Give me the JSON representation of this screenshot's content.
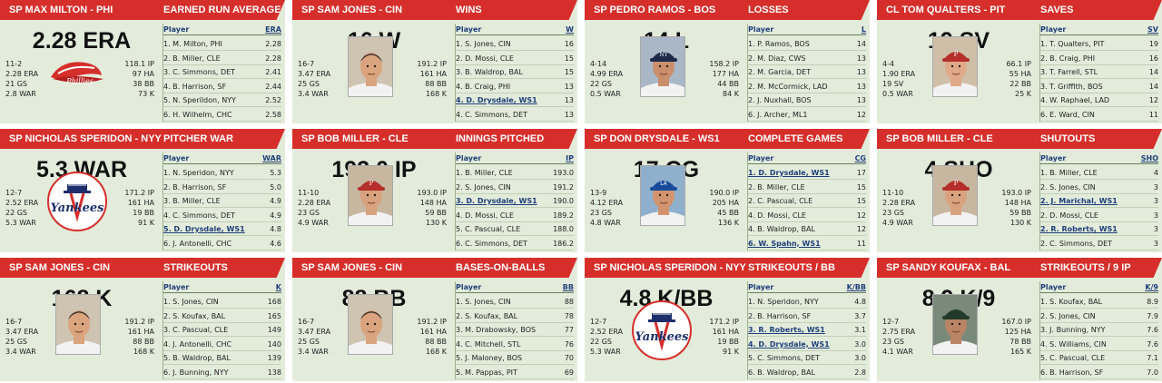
{
  "colors": {
    "header_bg": "#d62f2b",
    "card_bg": "#e3ecdb",
    "leader_link": "#1f3f7a"
  },
  "cards": [
    {
      "player_line": "SP MAX MILTON - PHI",
      "stat_title": "EARNED RUN AVERAGE",
      "big_value": "2.28 ERA",
      "mini_left": [
        "11-2",
        "2.28 ERA",
        "21 GS",
        "2.8 WAR"
      ],
      "mini_right": [
        "118.1 IP",
        "97 HA",
        "38 BB",
        "73 K"
      ],
      "image": "logo-phillies",
      "leader_header": "ERA",
      "leaders": [
        {
          "name": "1. M. Milton, PHI",
          "value": "2.28"
        },
        {
          "name": "2. B. Miller, CLE",
          "value": "2.28"
        },
        {
          "name": "3. C. Simmons, DET",
          "value": "2.41"
        },
        {
          "name": "4. B. Harrison, SF",
          "value": "2.44"
        },
        {
          "name": "5. N. Sperildon, NYY",
          "value": "2.52"
        },
        {
          "name": "6. H. Wilhelm, CHC",
          "value": "2.58"
        }
      ]
    },
    {
      "player_line": "SP SAM JONES - CIN",
      "stat_title": "WINS",
      "big_value": "16 W",
      "mini_left": [
        "16-7",
        "3.47 ERA",
        "25 GS",
        "3.4 WAR"
      ],
      "mini_right": [
        "191.2 IP",
        "161 HA",
        "88 BB",
        "168 K"
      ],
      "image": "photo-jones",
      "leader_header": "W",
      "leaders": [
        {
          "name": "1. S. Jones, CIN",
          "value": "16"
        },
        {
          "name": "2. D. Mossi, CLE",
          "value": "15"
        },
        {
          "name": "3. B. Waldrop, BAL",
          "value": "15"
        },
        {
          "name": "4. B. Craig, PHI",
          "value": "13"
        },
        {
          "name": "4. D. Drysdale, WS1",
          "value": "13",
          "hl": true
        },
        {
          "name": "4. C. Simmons, DET",
          "value": "13"
        }
      ]
    },
    {
      "player_line": "SP PEDRO RAMOS - BOS",
      "stat_title": "LOSSES",
      "big_value": "14 L",
      "mini_left": [
        "4-14",
        "4.99 ERA",
        "22 GS",
        "0.5 WAR"
      ],
      "mini_right": [
        "158.2 IP",
        "177 HA",
        "44 BB",
        "84 K"
      ],
      "image": "photo-ramos",
      "leader_header": "L",
      "leaders": [
        {
          "name": "1. P. Ramos, BOS",
          "value": "14"
        },
        {
          "name": "2. M. Diaz, CWS",
          "value": "13"
        },
        {
          "name": "2. M. Garcia, DET",
          "value": "13"
        },
        {
          "name": "2. M. McCormick, LAD",
          "value": "13"
        },
        {
          "name": "2. J. Nuxhall, BOS",
          "value": "13"
        },
        {
          "name": "6. J. Archer, ML1",
          "value": "12"
        }
      ]
    },
    {
      "player_line": "CL TOM QUALTERS - PIT",
      "stat_title": "SAVES",
      "big_value": "19 SV",
      "mini_left": [
        "4-4",
        "1.90 ERA",
        "19 SV",
        "0.5 WAR"
      ],
      "mini_right": [
        "66.1 IP",
        "55 HA",
        "22 BB",
        "25 K"
      ],
      "image": "photo-qualters",
      "leader_header": "SV",
      "leaders": [
        {
          "name": "1. T. Qualters, PIT",
          "value": "19"
        },
        {
          "name": "2. B. Craig, PHI",
          "value": "16"
        },
        {
          "name": "3. T. Farrell, STL",
          "value": "14"
        },
        {
          "name": "3. T. Griffith, BOS",
          "value": "14"
        },
        {
          "name": "4. W. Raphael, LAD",
          "value": "12"
        },
        {
          "name": "6. E. Ward, CIN",
          "value": "11"
        }
      ]
    },
    {
      "player_line": "SP NICHOLAS SPERIDON - NYY",
      "stat_title": "PITCHER WAR",
      "big_value": "5.3 WAR",
      "mini_left": [
        "12-7",
        "2.52 ERA",
        "22 GS",
        "5.3 WAR"
      ],
      "mini_right": [
        "171.2 IP",
        "161 HA",
        "19 BB",
        "91 K"
      ],
      "image": "logo-yankees",
      "leader_header": "WAR",
      "leaders": [
        {
          "name": "1. N. Speridon, NYY",
          "value": "5.3"
        },
        {
          "name": "2. B. Harrison, SF",
          "value": "5.0"
        },
        {
          "name": "3. B. Miller, CLE",
          "value": "4.9"
        },
        {
          "name": "4. C. Simmons, DET",
          "value": "4.9"
        },
        {
          "name": "5. D. Drysdale, WS1",
          "value": "4.8",
          "hl": true
        },
        {
          "name": "6. J. Antonelli, CHC",
          "value": "4.6"
        }
      ]
    },
    {
      "player_line": "SP BOB MILLER - CLE",
      "stat_title": "INNINGS PITCHED",
      "big_value": "193.0 IP",
      "mini_left": [
        "11-10",
        "2.28 ERA",
        "23 GS",
        "4.9 WAR"
      ],
      "mini_right": [
        "193.0 IP",
        "148 HA",
        "59 BB",
        "130 K"
      ],
      "image": "photo-miller",
      "leader_header": "IP",
      "leaders": [
        {
          "name": "1. B. Miller, CLE",
          "value": "193.0"
        },
        {
          "name": "2. S. Jones, CIN",
          "value": "191.2"
        },
        {
          "name": "3. D. Drysdale, WS1",
          "value": "190.0",
          "hl": true
        },
        {
          "name": "4. D. Mossi, CLE",
          "value": "189.2"
        },
        {
          "name": "5. C. Pascual, CLE",
          "value": "188.0"
        },
        {
          "name": "6. C. Simmons, DET",
          "value": "186.2"
        }
      ]
    },
    {
      "player_line": "SP DON DRYSDALE - WS1",
      "stat_title": "COMPLETE GAMES",
      "big_value": "17 CG",
      "mini_left": [
        "13-9",
        "4.12 ERA",
        "23 GS",
        "4.8 WAR"
      ],
      "mini_right": [
        "190.0 IP",
        "205 HA",
        "45 BB",
        "136 K"
      ],
      "image": "photo-drysdale",
      "leader_header": "CG",
      "leaders": [
        {
          "name": "1. D. Drysdale, WS1",
          "value": "17",
          "hl": true
        },
        {
          "name": "2. B. Miller, CLE",
          "value": "15"
        },
        {
          "name": "2. C. Pascual, CLE",
          "value": "15"
        },
        {
          "name": "4. D. Mossi, CLE",
          "value": "12"
        },
        {
          "name": "4. B. Waldrop, BAL",
          "value": "12"
        },
        {
          "name": "6. W. Spahn, WS1",
          "value": "11",
          "hl": true
        }
      ]
    },
    {
      "player_line": "SP BOB MILLER - CLE",
      "stat_title": "SHUTOUTS",
      "big_value": "4 SHO",
      "mini_left": [
        "11-10",
        "2.28 ERA",
        "23 GS",
        "4.9 WAR"
      ],
      "mini_right": [
        "193.0 IP",
        "148 HA",
        "59 BB",
        "130 K"
      ],
      "image": "photo-miller",
      "leader_header": "SHO",
      "leaders": [
        {
          "name": "1. B. Miller, CLE",
          "value": "4"
        },
        {
          "name": "2. S. Jones, CIN",
          "value": "3"
        },
        {
          "name": "2. J. Marichal, WS1",
          "value": "3",
          "hl": true
        },
        {
          "name": "2. D. Mossi, CLE",
          "value": "3"
        },
        {
          "name": "2. R. Roberts, WS1",
          "value": "3",
          "hl": true
        },
        {
          "name": "2. C. Simmons, DET",
          "value": "3"
        }
      ]
    },
    {
      "player_line": "SP SAM JONES - CIN",
      "stat_title": "STRIKEOUTS",
      "big_value": "168 K",
      "mini_left": [
        "16-7",
        "3.47 ERA",
        "25 GS",
        "3.4 WAR"
      ],
      "mini_right": [
        "191.2 IP",
        "161 HA",
        "88 BB",
        "168 K"
      ],
      "image": "photo-jones",
      "leader_header": "K",
      "leaders": [
        {
          "name": "1. S. Jones, CIN",
          "value": "168"
        },
        {
          "name": "2. S. Koufax, BAL",
          "value": "165"
        },
        {
          "name": "3. C. Pascual, CLE",
          "value": "149"
        },
        {
          "name": "4. J. Antonelli, CHC",
          "value": "140"
        },
        {
          "name": "5. B. Waldrop, BAL",
          "value": "139"
        },
        {
          "name": "6. J. Bunning, NYY",
          "value": "138"
        }
      ]
    },
    {
      "player_line": "SP SAM JONES - CIN",
      "stat_title": "BASES-ON-BALLS",
      "big_value": "88 BB",
      "mini_left": [
        "16-7",
        "3.47 ERA",
        "25 GS",
        "3.4 WAR"
      ],
      "mini_right": [
        "191.2 IP",
        "161 HA",
        "88 BB",
        "168 K"
      ],
      "image": "photo-jones",
      "leader_header": "BB",
      "leaders": [
        {
          "name": "1. S. Jones, CIN",
          "value": "88"
        },
        {
          "name": "2. S. Koufax, BAL",
          "value": "78"
        },
        {
          "name": "3. M. Drabowsky, BOS",
          "value": "77"
        },
        {
          "name": "4. C. Mitchell, STL",
          "value": "76"
        },
        {
          "name": "5. J. Maloney, BOS",
          "value": "70"
        },
        {
          "name": "5. M. Pappas, PIT",
          "value": "69"
        }
      ]
    },
    {
      "player_line": "SP NICHOLAS SPERIDON - NYY",
      "stat_title": "STRIKEOUTS / BB",
      "big_value": "4.8 K/BB",
      "mini_left": [
        "12-7",
        "2.52 ERA",
        "22 GS",
        "5.3 WAR"
      ],
      "mini_right": [
        "171.2 IP",
        "161 HA",
        "19 BB",
        "91 K"
      ],
      "image": "logo-yankees",
      "leader_header": "K/BB",
      "leaders": [
        {
          "name": "1. N. Speridon, NYY",
          "value": "4.8"
        },
        {
          "name": "2. B. Harrison, SF",
          "value": "3.7"
        },
        {
          "name": "3. R. Roberts, WS1",
          "value": "3.1",
          "hl": true
        },
        {
          "name": "4. D. Drysdale, WS1",
          "value": "3.0",
          "hl": true
        },
        {
          "name": "5. C. Simmons, DET",
          "value": "3.0"
        },
        {
          "name": "6. B. Waldrop, BAL",
          "value": "2.8"
        }
      ]
    },
    {
      "player_line": "SP SANDY KOUFAX - BAL",
      "stat_title": "STRIKEOUTS / 9 IP",
      "big_value": "8.9 K/9",
      "mini_left": [
        "12-7",
        "2.75 ERA",
        "23 GS",
        "4.1 WAR"
      ],
      "mini_right": [
        "167.0 IP",
        "125 HA",
        "78 BB",
        "165 K"
      ],
      "image": "photo-koufax",
      "leader_header": "K/9",
      "leaders": [
        {
          "name": "1. S. Koufax, BAL",
          "value": "8.9"
        },
        {
          "name": "2. S. Jones, CIN",
          "value": "7.9"
        },
        {
          "name": "3. J. Bunning, NYY",
          "value": "7.6"
        },
        {
          "name": "4. S. Williams, CIN",
          "value": "7.6"
        },
        {
          "name": "5. C. Pascual, CLE",
          "value": "7.1"
        },
        {
          "name": "6. B. Harrison, SF",
          "value": "7.0"
        }
      ]
    }
  ],
  "leader_col_label": "Player",
  "phillies_script": "Phillies",
  "yankees_script": "Yankees"
}
